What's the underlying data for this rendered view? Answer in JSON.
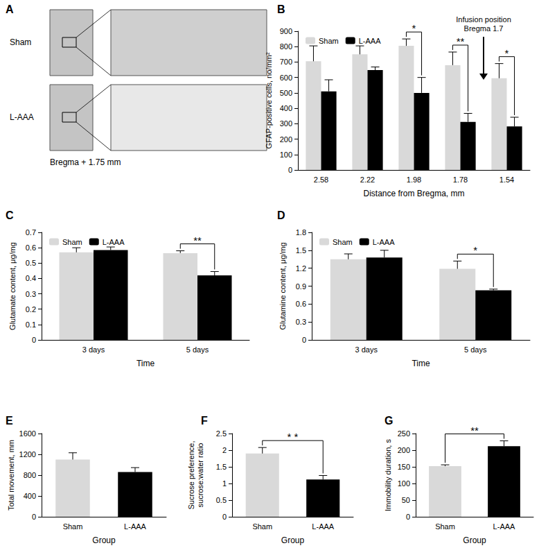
{
  "panel_a": {
    "panel": "A",
    "rows": [
      "Sham",
      "L-AAA"
    ],
    "caption": "Bregma + 1.75 mm"
  },
  "chart_data": [
    {
      "panel": "B",
      "type": "bar",
      "x_label": "Distance from Bregma, mm",
      "y_label": "GFAP-positive cells, no/mm²",
      "categories": [
        "2.58",
        "2.22",
        "1.98",
        "1.78",
        "1.54"
      ],
      "series": [
        {
          "name": "Sham",
          "color": "#d9d9d9",
          "values": [
            705,
            750,
            805,
            680,
            595
          ],
          "errors": [
            100,
            55,
            45,
            85,
            95
          ]
        },
        {
          "name": "L-AAA",
          "color": "#000000",
          "values": [
            510,
            648,
            500,
            312,
            282
          ],
          "errors": [
            75,
            20,
            100,
            55,
            60
          ]
        }
      ],
      "ylim": [
        0,
        900
      ],
      "yticks": [
        0,
        100,
        200,
        300,
        400,
        500,
        600,
        700,
        800,
        900
      ],
      "grid": false,
      "legend": "top-left",
      "significance": [
        {
          "category": "1.98",
          "label": "*"
        },
        {
          "category": "1.78",
          "label": "**"
        },
        {
          "category": "1.54",
          "label": "*"
        }
      ],
      "callout": {
        "label": "Infusion position\nBregma 1.7",
        "between": [
          "1.78",
          "1.54"
        ]
      }
    },
    {
      "panel": "C",
      "type": "bar",
      "x_label": "Time",
      "y_label": "Glutamate content, μg/mg",
      "categories": [
        "3 days",
        "5 days"
      ],
      "series": [
        {
          "name": "Sham",
          "color": "#d9d9d9",
          "values": [
            0.57,
            0.565
          ],
          "errors": [
            0.03,
            0.015
          ]
        },
        {
          "name": "L-AAA",
          "color": "#000000",
          "values": [
            0.585,
            0.42
          ],
          "errors": [
            0.02,
            0.025
          ]
        }
      ],
      "ylim": [
        0,
        0.7
      ],
      "yticks": [
        0,
        0.1,
        0.2,
        0.3,
        0.4,
        0.5,
        0.6,
        0.7
      ],
      "grid": false,
      "legend": "top-left",
      "significance": [
        {
          "category": "5 days",
          "label": "**"
        }
      ]
    },
    {
      "panel": "D",
      "type": "bar",
      "x_label": "Time",
      "y_label": "Glutamine content, μg/mg",
      "categories": [
        "3 days",
        "5 days"
      ],
      "series": [
        {
          "name": "Sham",
          "color": "#d9d9d9",
          "values": [
            1.35,
            1.19
          ],
          "errors": [
            0.09,
            0.13
          ]
        },
        {
          "name": "L-AAA",
          "color": "#000000",
          "values": [
            1.38,
            0.83
          ],
          "errors": [
            0.12,
            0.02
          ]
        }
      ],
      "ylim": [
        0,
        1.8
      ],
      "yticks": [
        0,
        0.3,
        0.6,
        0.9,
        1.2,
        1.5,
        1.8
      ],
      "grid": false,
      "legend": "top-left",
      "significance": [
        {
          "category": "5 days",
          "label": "*"
        }
      ]
    },
    {
      "panel": "E",
      "type": "bar",
      "x_label": "Group",
      "y_label": "Total movement, mm",
      "categories": [
        "Sham",
        "L-AAA"
      ],
      "values": [
        1100,
        860
      ],
      "errors": [
        130,
        85
      ],
      "colors": [
        "#d9d9d9",
        "#000000"
      ],
      "ylim": [
        0,
        1600
      ],
      "yticks": [
        0,
        400,
        800,
        1200,
        1600
      ],
      "grid": false
    },
    {
      "panel": "F",
      "type": "bar",
      "x_label": "Group",
      "y_label": "Sucrose preference,\nsucrose:water ratio",
      "categories": [
        "Sham",
        "L-AAA"
      ],
      "values": [
        1.9,
        1.12
      ],
      "errors": [
        0.18,
        0.12
      ],
      "colors": [
        "#d9d9d9",
        "#000000"
      ],
      "ylim": [
        0,
        2.5
      ],
      "yticks": [
        0,
        0.5,
        1,
        1.5,
        2,
        2.5
      ],
      "grid": false,
      "significance": [
        {
          "between": [
            "Sham",
            "L-AAA"
          ],
          "label": "* *"
        }
      ]
    },
    {
      "panel": "G",
      "type": "bar",
      "x_label": "Group",
      "y_label": "Immobility duration, s",
      "categories": [
        "Sham",
        "L-AAA"
      ],
      "values": [
        152,
        212
      ],
      "errors": [
        4,
        16
      ],
      "colors": [
        "#d9d9d9",
        "#000000"
      ],
      "ylim": [
        0,
        250
      ],
      "yticks": [
        0,
        50,
        100,
        150,
        200,
        250
      ],
      "grid": false,
      "significance": [
        {
          "between": [
            "Sham",
            "L-AAA"
          ],
          "label": "**"
        }
      ]
    }
  ]
}
